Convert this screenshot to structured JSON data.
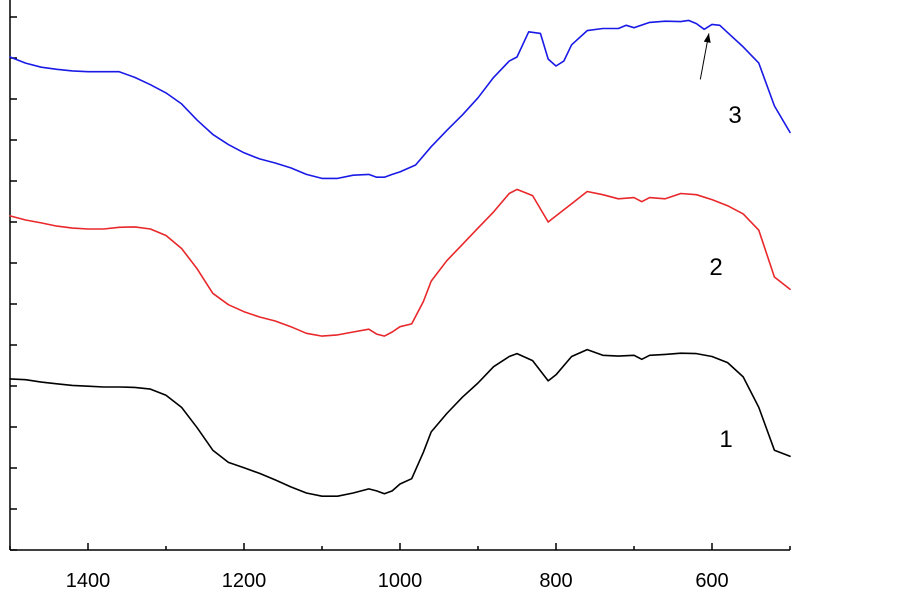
{
  "chart_data": {
    "type": "line",
    "title": "",
    "xlabel": "",
    "ylabel": "",
    "xlim": [
      1500,
      500
    ],
    "ylim": [
      0,
      13.5
    ],
    "x_reversed": true,
    "y_tick_count": 13,
    "x_ticks": [
      "1400",
      "1200",
      "1000",
      "800",
      "600"
    ],
    "x_tick_values": [
      1400,
      1200,
      1000,
      800,
      600
    ],
    "grid": false,
    "legend": "none",
    "series": [
      {
        "label": "1",
        "color": "#000000",
        "points": [
          [
            1500,
            4.2
          ],
          [
            1480,
            4.18
          ],
          [
            1460,
            4.12
          ],
          [
            1440,
            4.08
          ],
          [
            1420,
            4.04
          ],
          [
            1400,
            4.02
          ],
          [
            1380,
            4.0
          ],
          [
            1360,
            4.0
          ],
          [
            1340,
            3.99
          ],
          [
            1320,
            3.95
          ],
          [
            1300,
            3.8
          ],
          [
            1280,
            3.5
          ],
          [
            1260,
            3.0
          ],
          [
            1240,
            2.45
          ],
          [
            1220,
            2.15
          ],
          [
            1200,
            2.02
          ],
          [
            1180,
            1.88
          ],
          [
            1160,
            1.72
          ],
          [
            1140,
            1.55
          ],
          [
            1120,
            1.4
          ],
          [
            1100,
            1.32
          ],
          [
            1080,
            1.32
          ],
          [
            1060,
            1.4
          ],
          [
            1040,
            1.5
          ],
          [
            1030,
            1.45
          ],
          [
            1020,
            1.38
          ],
          [
            1010,
            1.45
          ],
          [
            1000,
            1.62
          ],
          [
            985,
            1.75
          ],
          [
            970,
            2.4
          ],
          [
            960,
            2.9
          ],
          [
            940,
            3.35
          ],
          [
            920,
            3.75
          ],
          [
            900,
            4.1
          ],
          [
            880,
            4.5
          ],
          [
            860,
            4.75
          ],
          [
            850,
            4.82
          ],
          [
            830,
            4.65
          ],
          [
            810,
            4.15
          ],
          [
            800,
            4.3
          ],
          [
            780,
            4.75
          ],
          [
            760,
            4.92
          ],
          [
            740,
            4.78
          ],
          [
            720,
            4.76
          ],
          [
            700,
            4.78
          ],
          [
            690,
            4.68
          ],
          [
            680,
            4.78
          ],
          [
            660,
            4.8
          ],
          [
            640,
            4.83
          ],
          [
            620,
            4.82
          ],
          [
            600,
            4.75
          ],
          [
            580,
            4.6
          ],
          [
            560,
            4.25
          ],
          [
            540,
            3.5
          ],
          [
            520,
            2.45
          ],
          [
            500,
            2.3
          ]
        ]
      },
      {
        "label": "2",
        "color": "#e8282b",
        "points": [
          [
            1500,
            8.2
          ],
          [
            1480,
            8.1
          ],
          [
            1460,
            8.03
          ],
          [
            1440,
            7.95
          ],
          [
            1420,
            7.9
          ],
          [
            1400,
            7.88
          ],
          [
            1380,
            7.88
          ],
          [
            1360,
            7.92
          ],
          [
            1340,
            7.93
          ],
          [
            1320,
            7.88
          ],
          [
            1300,
            7.72
          ],
          [
            1280,
            7.4
          ],
          [
            1260,
            6.9
          ],
          [
            1240,
            6.3
          ],
          [
            1220,
            6.02
          ],
          [
            1200,
            5.85
          ],
          [
            1180,
            5.72
          ],
          [
            1160,
            5.62
          ],
          [
            1140,
            5.48
          ],
          [
            1120,
            5.32
          ],
          [
            1100,
            5.25
          ],
          [
            1080,
            5.28
          ],
          [
            1060,
            5.35
          ],
          [
            1040,
            5.42
          ],
          [
            1030,
            5.3
          ],
          [
            1020,
            5.25
          ],
          [
            1010,
            5.35
          ],
          [
            1000,
            5.48
          ],
          [
            985,
            5.55
          ],
          [
            970,
            6.1
          ],
          [
            960,
            6.6
          ],
          [
            940,
            7.1
          ],
          [
            920,
            7.5
          ],
          [
            900,
            7.9
          ],
          [
            880,
            8.3
          ],
          [
            860,
            8.75
          ],
          [
            850,
            8.85
          ],
          [
            830,
            8.7
          ],
          [
            810,
            8.05
          ],
          [
            800,
            8.2
          ],
          [
            780,
            8.5
          ],
          [
            760,
            8.8
          ],
          [
            740,
            8.72
          ],
          [
            720,
            8.62
          ],
          [
            700,
            8.65
          ],
          [
            690,
            8.55
          ],
          [
            680,
            8.65
          ],
          [
            660,
            8.62
          ],
          [
            640,
            8.75
          ],
          [
            620,
            8.72
          ],
          [
            600,
            8.6
          ],
          [
            580,
            8.45
          ],
          [
            560,
            8.25
          ],
          [
            540,
            7.85
          ],
          [
            520,
            6.7
          ],
          [
            500,
            6.4
          ]
        ]
      },
      {
        "label": "3",
        "color": "#1a1ae6",
        "points": [
          [
            1500,
            12.1
          ],
          [
            1480,
            11.95
          ],
          [
            1460,
            11.85
          ],
          [
            1440,
            11.8
          ],
          [
            1420,
            11.76
          ],
          [
            1400,
            11.74
          ],
          [
            1380,
            11.74
          ],
          [
            1360,
            11.74
          ],
          [
            1340,
            11.6
          ],
          [
            1320,
            11.42
          ],
          [
            1300,
            11.22
          ],
          [
            1280,
            10.95
          ],
          [
            1260,
            10.55
          ],
          [
            1240,
            10.2
          ],
          [
            1220,
            9.95
          ],
          [
            1200,
            9.75
          ],
          [
            1180,
            9.6
          ],
          [
            1160,
            9.5
          ],
          [
            1140,
            9.38
          ],
          [
            1120,
            9.22
          ],
          [
            1100,
            9.12
          ],
          [
            1080,
            9.12
          ],
          [
            1060,
            9.2
          ],
          [
            1040,
            9.22
          ],
          [
            1030,
            9.15
          ],
          [
            1020,
            9.15
          ],
          [
            1010,
            9.22
          ],
          [
            1000,
            9.28
          ],
          [
            980,
            9.45
          ],
          [
            960,
            9.9
          ],
          [
            940,
            10.3
          ],
          [
            920,
            10.68
          ],
          [
            900,
            11.1
          ],
          [
            880,
            11.6
          ],
          [
            860,
            12.0
          ],
          [
            850,
            12.1
          ],
          [
            835,
            12.72
          ],
          [
            820,
            12.68
          ],
          [
            810,
            12.05
          ],
          [
            800,
            11.88
          ],
          [
            790,
            12.0
          ],
          [
            780,
            12.4
          ],
          [
            760,
            12.75
          ],
          [
            740,
            12.8
          ],
          [
            720,
            12.8
          ],
          [
            710,
            12.88
          ],
          [
            700,
            12.82
          ],
          [
            680,
            12.95
          ],
          [
            660,
            12.98
          ],
          [
            640,
            12.97
          ],
          [
            630,
            13.0
          ],
          [
            620,
            12.92
          ],
          [
            610,
            12.78
          ],
          [
            600,
            12.9
          ],
          [
            590,
            12.88
          ],
          [
            580,
            12.7
          ],
          [
            560,
            12.35
          ],
          [
            540,
            11.95
          ],
          [
            520,
            10.9
          ],
          [
            500,
            10.25
          ]
        ]
      }
    ],
    "annotations": [
      {
        "type": "arrow",
        "from": [
          615,
          11.55
        ],
        "to": [
          604,
          12.68
        ]
      }
    ]
  }
}
